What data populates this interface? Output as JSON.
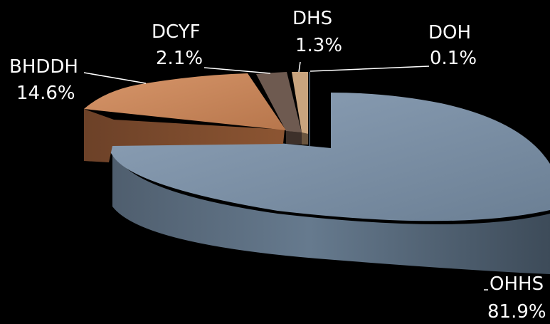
{
  "chart_data": {
    "type": "pie",
    "style": "3d-exploded",
    "background": "#000000",
    "slices": [
      {
        "name": "OHHS",
        "label": "OHHS",
        "value_label": "81.9%",
        "value": 81.9,
        "color": "#7b90a6",
        "exploded": true
      },
      {
        "name": "BHDDH",
        "label": "BHDDH",
        "value_label": "14.6%",
        "value": 14.6,
        "color": "#c7865b",
        "exploded": true
      },
      {
        "name": "DCYF",
        "label": "DCYF",
        "value_label": "2.1%",
        "value": 2.1,
        "color": "#6e5a50",
        "exploded": false
      },
      {
        "name": "DHS",
        "label": "DHS",
        "value_label": "1.3%",
        "value": 1.3,
        "color": "#c9a47e",
        "exploded": false
      },
      {
        "name": "DOH",
        "label": "DOH",
        "value_label": "0.1%",
        "value": 0.1,
        "color": "#3a4a5a",
        "exploded": false
      }
    ]
  }
}
